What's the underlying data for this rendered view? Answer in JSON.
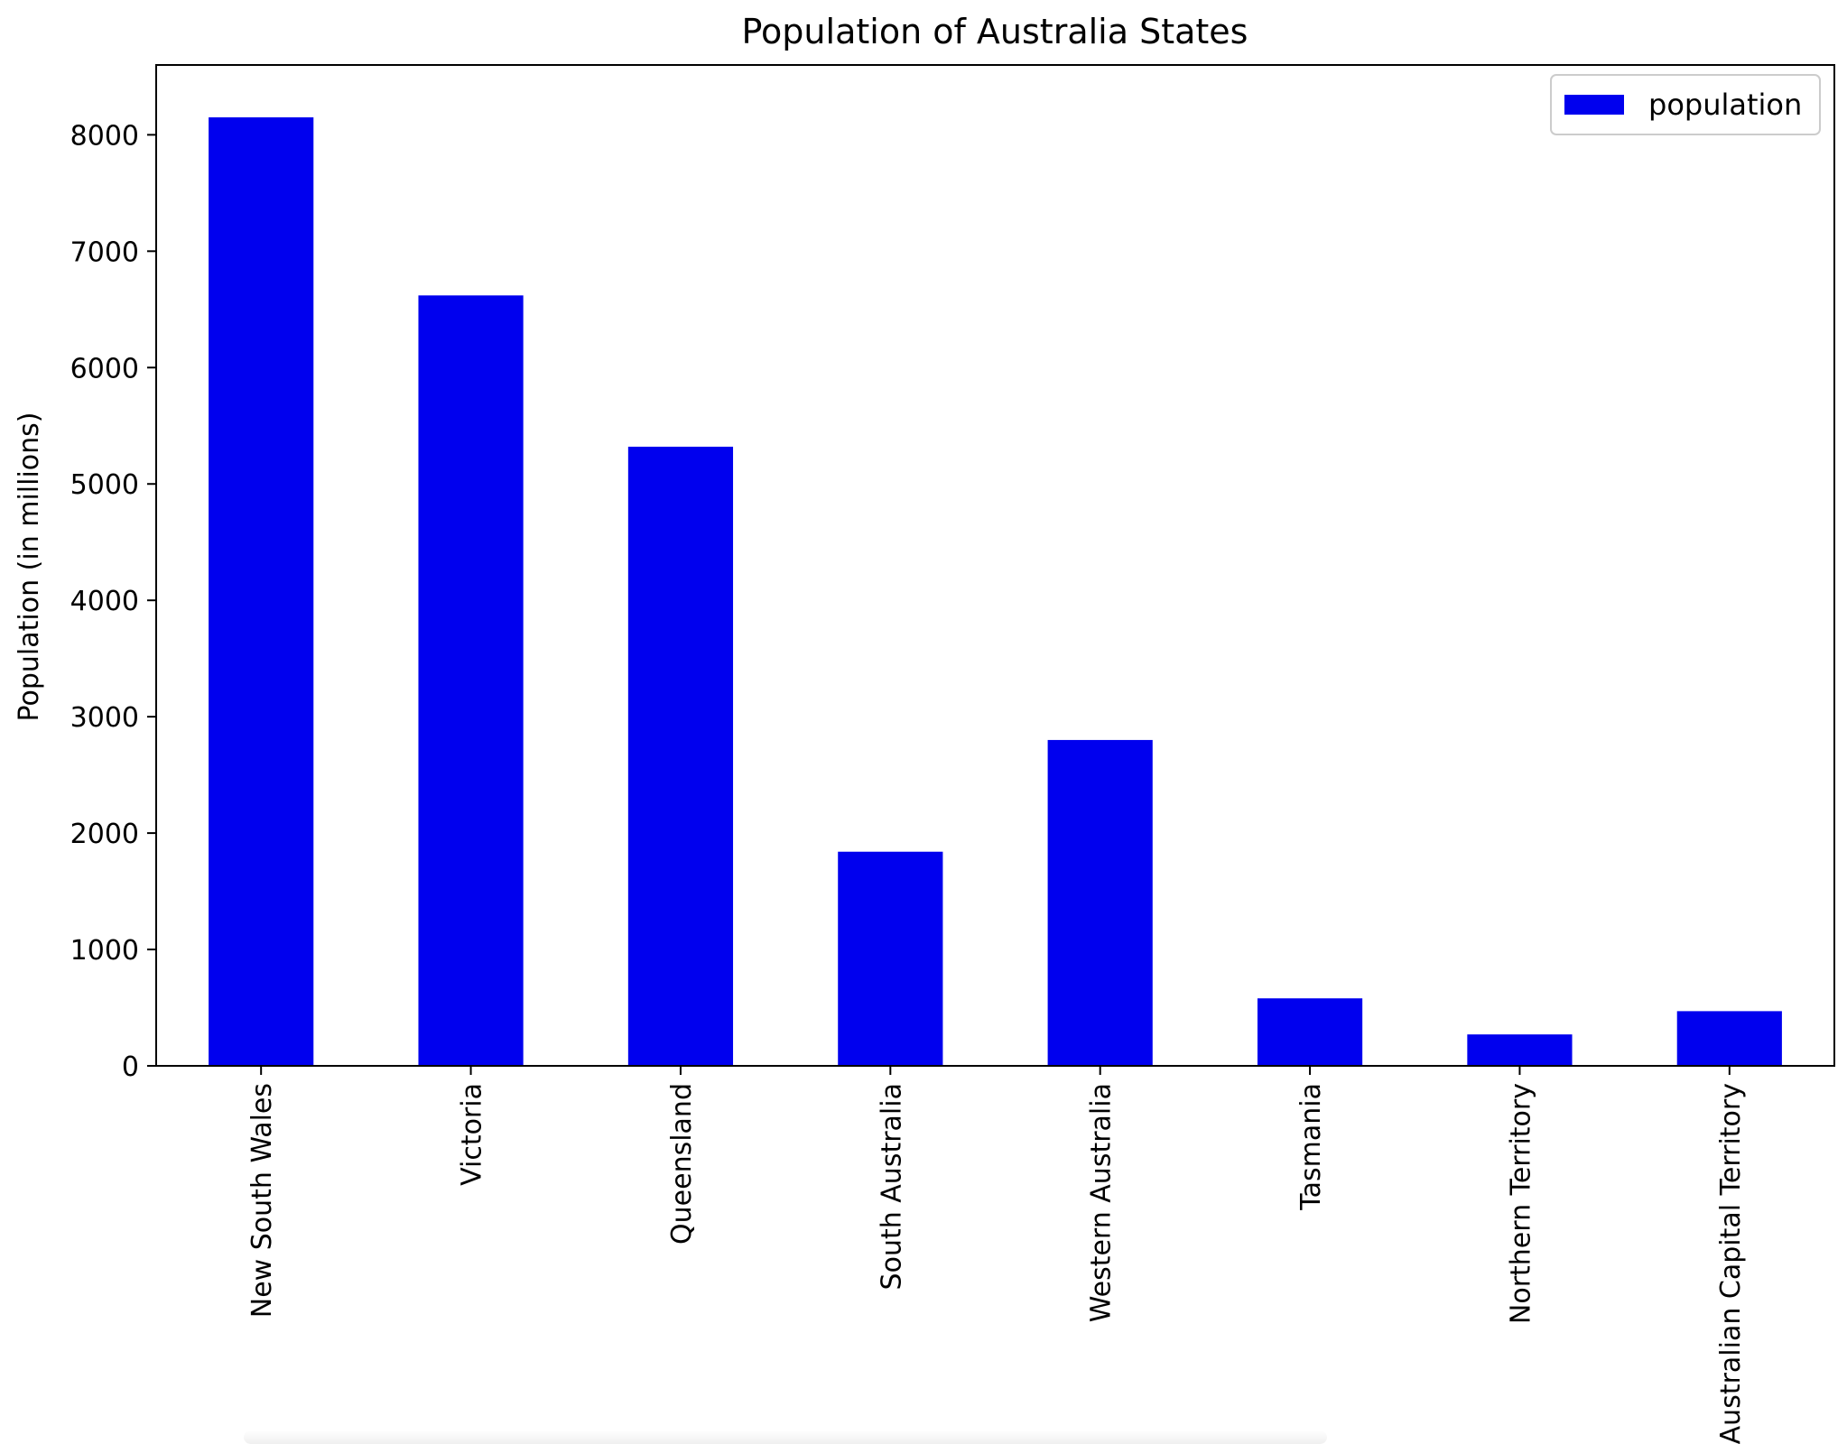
{
  "chart_data": {
    "type": "bar",
    "title": "Population of Australia States",
    "xlabel": "",
    "ylabel": "Population (in millions)",
    "categories": [
      "New South Wales",
      "Victoria",
      "Queensland",
      "South Australia",
      "Western Australia",
      "Tasmania",
      "Northern Territory",
      "Australian Capital Territory"
    ],
    "series": [
      {
        "name": "population",
        "values": [
          8150,
          6620,
          5320,
          1840,
          2800,
          580,
          270,
          470
        ],
        "color": "#0000ee"
      }
    ],
    "ylim": [
      0,
      8600
    ],
    "yticks": [
      0,
      1000,
      2000,
      3000,
      4000,
      5000,
      6000,
      7000,
      8000
    ],
    "grid": false,
    "legend": {
      "position": "top-right",
      "entries": [
        "population"
      ]
    }
  }
}
